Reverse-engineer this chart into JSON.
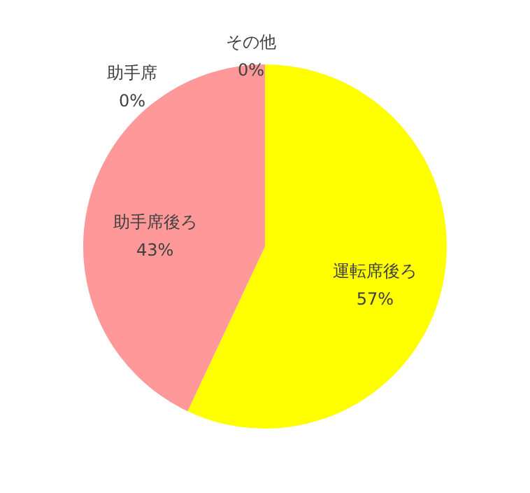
{
  "chart_data": {
    "type": "pie",
    "categories": [
      "運転席後ろ",
      "助手席後ろ",
      "助手席",
      "その他"
    ],
    "values": [
      57,
      43,
      0,
      0
    ],
    "value_labels": [
      "57%",
      "43%",
      "0%",
      "0%"
    ],
    "colors": [
      "#ffff00",
      "#ff9999",
      "#a5a5a5",
      "#ffc000"
    ]
  }
}
